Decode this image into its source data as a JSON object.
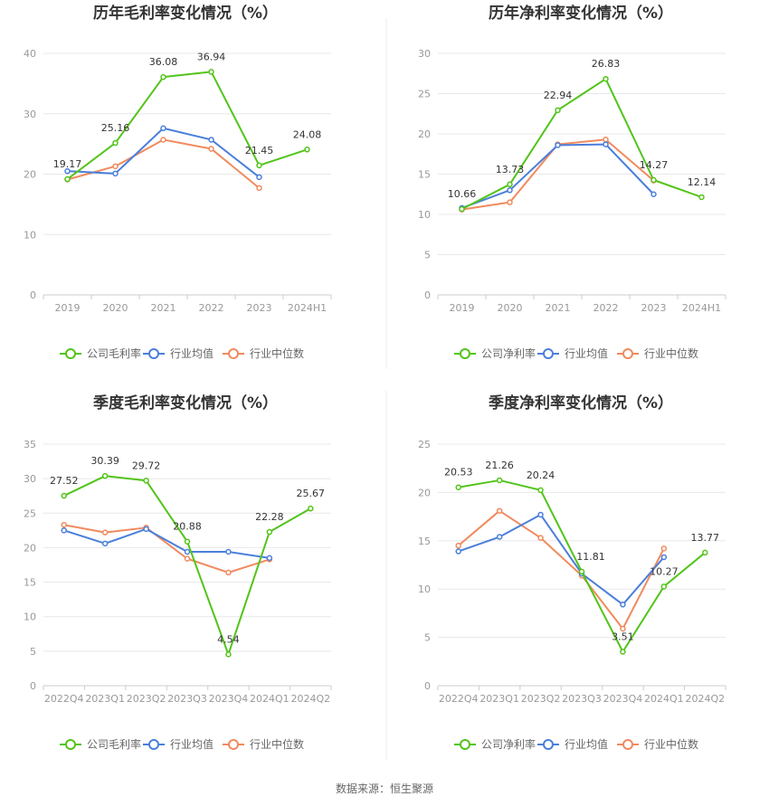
{
  "colors": {
    "company": "#52c41a",
    "industry_avg": "#4a7fd9",
    "industry_median": "#f08a5d",
    "grid": "#e8e8e8",
    "axis": "#cccccc",
    "divider": "#eeeeee"
  },
  "legend_icon": "circle-line-icon",
  "source_text": "数据来源：恒生聚源",
  "chart_data": [
    {
      "type": "line",
      "title": "历年毛利率变化情况（%）",
      "categories": [
        "2019",
        "2020",
        "2021",
        "2022",
        "2023",
        "2024H1"
      ],
      "ylim": [
        0,
        40
      ],
      "yticks": [
        "0",
        "10",
        "20",
        "30",
        "40"
      ],
      "grid": true,
      "legend_position": "bottom",
      "series": [
        {
          "name": "公司毛利率",
          "key": "company",
          "values": [
            19.17,
            25.16,
            36.08,
            36.94,
            21.45,
            24.08
          ],
          "labels": [
            "19.17",
            "25.16",
            "36.08",
            "36.94",
            "21.45",
            "24.08"
          ]
        },
        {
          "name": "行业均值",
          "key": "industry_avg",
          "values": [
            20.5,
            20.1,
            27.6,
            25.7,
            19.5,
            null
          ]
        },
        {
          "name": "行业中位数",
          "key": "industry_median",
          "values": [
            19.1,
            21.3,
            25.7,
            24.2,
            17.7,
            null
          ]
        }
      ]
    },
    {
      "type": "line",
      "title": "历年净利率变化情况（%）",
      "categories": [
        "2019",
        "2020",
        "2021",
        "2022",
        "2023",
        "2024H1"
      ],
      "ylim": [
        0,
        30
      ],
      "yticks": [
        "0",
        "5",
        "10",
        "15",
        "20",
        "25",
        "30"
      ],
      "grid": true,
      "legend_position": "bottom",
      "series": [
        {
          "name": "公司净利率",
          "key": "company",
          "values": [
            10.66,
            13.73,
            22.94,
            26.83,
            14.27,
            12.14
          ],
          "labels": [
            "10.66",
            "13.73",
            "22.94",
            "26.83",
            "14.27",
            "12.14"
          ]
        },
        {
          "name": "行业均值",
          "key": "industry_avg",
          "values": [
            10.8,
            13.0,
            18.6,
            18.7,
            12.5,
            null
          ]
        },
        {
          "name": "行业中位数",
          "key": "industry_median",
          "values": [
            10.6,
            11.5,
            18.7,
            19.3,
            14.2,
            null
          ]
        }
      ]
    },
    {
      "type": "line",
      "title": "季度毛利率变化情况（%）",
      "categories": [
        "2022Q4",
        "2023Q1",
        "2023Q2",
        "2023Q3",
        "2023Q4",
        "2024Q1",
        "2024Q2"
      ],
      "ylim": [
        0,
        35
      ],
      "yticks": [
        "0",
        "5",
        "10",
        "15",
        "20",
        "25",
        "30",
        "35"
      ],
      "grid": true,
      "legend_position": "bottom",
      "series": [
        {
          "name": "公司毛利率",
          "key": "company",
          "values": [
            27.52,
            30.39,
            29.72,
            20.88,
            4.54,
            22.28,
            25.67
          ],
          "labels": [
            "27.52",
            "30.39",
            "29.72",
            "20.88",
            "4.54",
            "22.28",
            "25.67"
          ]
        },
        {
          "name": "行业均值",
          "key": "industry_avg",
          "values": [
            22.5,
            20.6,
            22.7,
            19.4,
            19.4,
            18.5,
            null
          ]
        },
        {
          "name": "行业中位数",
          "key": "industry_median",
          "values": [
            23.3,
            22.2,
            22.9,
            18.4,
            16.4,
            18.3,
            null
          ]
        }
      ]
    },
    {
      "type": "line",
      "title": "季度净利率变化情况（%）",
      "categories": [
        "2022Q4",
        "2023Q1",
        "2023Q2",
        "2023Q3",
        "2023Q4",
        "2024Q1",
        "2024Q2"
      ],
      "ylim": [
        0,
        25
      ],
      "yticks": [
        "0",
        "5",
        "10",
        "15",
        "20",
        "25"
      ],
      "grid": true,
      "legend_position": "bottom",
      "series": [
        {
          "name": "公司净利率",
          "key": "company",
          "values": [
            20.53,
            21.26,
            20.24,
            11.81,
            3.51,
            10.27,
            13.77
          ],
          "labels": [
            "20.53",
            "21.26",
            "20.24",
            "11.81",
            "3.51",
            "10.27",
            "13.77"
          ]
        },
        {
          "name": "行业均值",
          "key": "industry_avg",
          "values": [
            13.9,
            15.4,
            17.7,
            11.6,
            8.4,
            13.3,
            null
          ]
        },
        {
          "name": "行业中位数",
          "key": "industry_median",
          "values": [
            14.5,
            18.1,
            15.3,
            11.4,
            5.9,
            14.2,
            null
          ]
        }
      ]
    }
  ]
}
